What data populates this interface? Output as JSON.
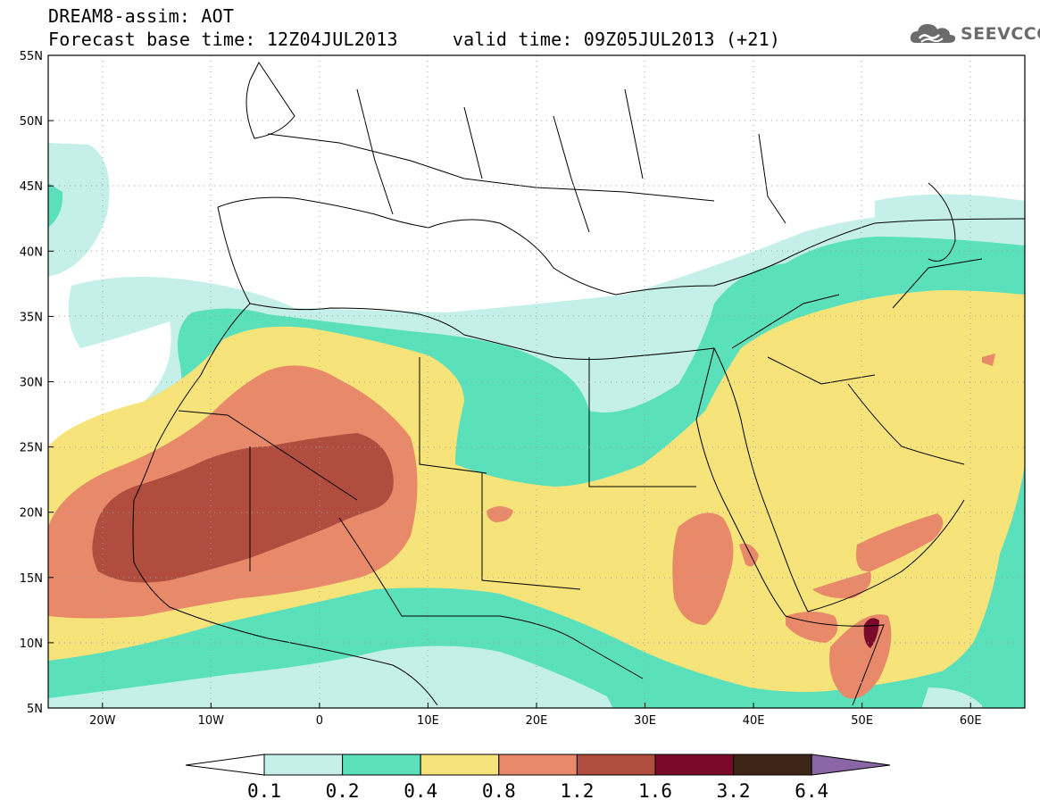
{
  "header": {
    "line1": "DREAM8-assim: AOT",
    "line2": "Forecast base time: 12Z04JUL2013     valid time: 09Z05JUL2013 (+21)"
  },
  "logo": {
    "text": "SEEVCCC",
    "icon": "cloud-icon"
  },
  "map": {
    "lon_range": [
      -25,
      65
    ],
    "lat_range": [
      5,
      55
    ],
    "lat_ticks": [
      {
        "lat": 55,
        "label": "55N"
      },
      {
        "lat": 50,
        "label": "50N"
      },
      {
        "lat": 45,
        "label": "45N"
      },
      {
        "lat": 40,
        "label": "40N"
      },
      {
        "lat": 35,
        "label": "35N"
      },
      {
        "lat": 30,
        "label": "30N"
      },
      {
        "lat": 25,
        "label": "25N"
      },
      {
        "lat": 20,
        "label": "20N"
      },
      {
        "lat": 15,
        "label": "15N"
      },
      {
        "lat": 10,
        "label": "10N"
      },
      {
        "lat": 5,
        "label": "5N"
      }
    ],
    "lon_ticks": [
      {
        "lon": -20,
        "label": "20W"
      },
      {
        "lon": -10,
        "label": "10W"
      },
      {
        "lon": 0,
        "label": "0"
      },
      {
        "lon": 10,
        "label": "10E"
      },
      {
        "lon": 20,
        "label": "20E"
      },
      {
        "lon": 30,
        "label": "30E"
      },
      {
        "lon": 40,
        "label": "40E"
      },
      {
        "lon": 50,
        "label": "50E"
      },
      {
        "lon": 60,
        "label": "60E"
      }
    ]
  },
  "colorbar": {
    "levels": [
      "0.1",
      "0.2",
      "0.4",
      "0.8",
      "1.2",
      "1.6",
      "3.2",
      "6.4"
    ],
    "colors": {
      "below": "#ffffff",
      "c1": "#c5f0ea",
      "c2": "#5be0bc",
      "c3": "#f6e37a",
      "c4": "#e8896a",
      "c5": "#b04d3e",
      "c6": "#7a0a2a",
      "c7": "#3e2617",
      "above": "#8a66a6"
    }
  }
}
